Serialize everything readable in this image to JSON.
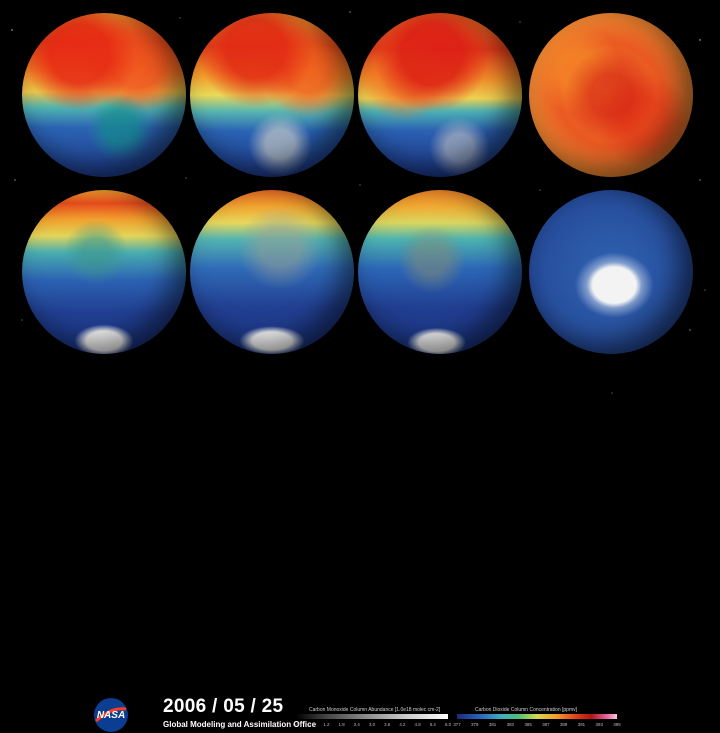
{
  "date": "2006 / 05 / 25",
  "organization": "Global Modeling and Assimilation Office",
  "logo": {
    "text": "NASA",
    "color_blue": "#0b3d91",
    "color_red": "#fc3d21"
  },
  "globes": [
    {
      "row": 1,
      "col": 1,
      "field": "co2-co",
      "view": "north-america"
    },
    {
      "row": 1,
      "col": 2,
      "field": "co2-co",
      "view": "africa-europe"
    },
    {
      "row": 1,
      "col": 3,
      "field": "co2-co",
      "view": "asia-australia"
    },
    {
      "row": 1,
      "col": 4,
      "field": "co2-co",
      "view": "north-pole"
    },
    {
      "row": 2,
      "col": 1,
      "field": "co2-co",
      "view": "south-america"
    },
    {
      "row": 2,
      "col": 2,
      "field": "co2-co",
      "view": "africa-south"
    },
    {
      "row": 2,
      "col": 3,
      "field": "co2-co",
      "view": "australia-south"
    },
    {
      "row": 2,
      "col": 4,
      "field": "co2-co",
      "view": "antarctica"
    }
  ],
  "co_scale": {
    "title": "Carbon Monoxide Column Abundance [1.0e18 molec cm-2]",
    "ticks": [
      "0.0",
      "0.6",
      "1.2",
      "1.8",
      "2.4",
      "3.0",
      "3.6",
      "4.2",
      "4.8",
      "5.4",
      "6.0"
    ]
  },
  "co2_scale": {
    "title": "Carbon Dioxide Column Concentration [ppmv]",
    "ticks": [
      "377",
      "379",
      "381",
      "383",
      "385",
      "387",
      "389",
      "391",
      "393",
      "395"
    ]
  }
}
